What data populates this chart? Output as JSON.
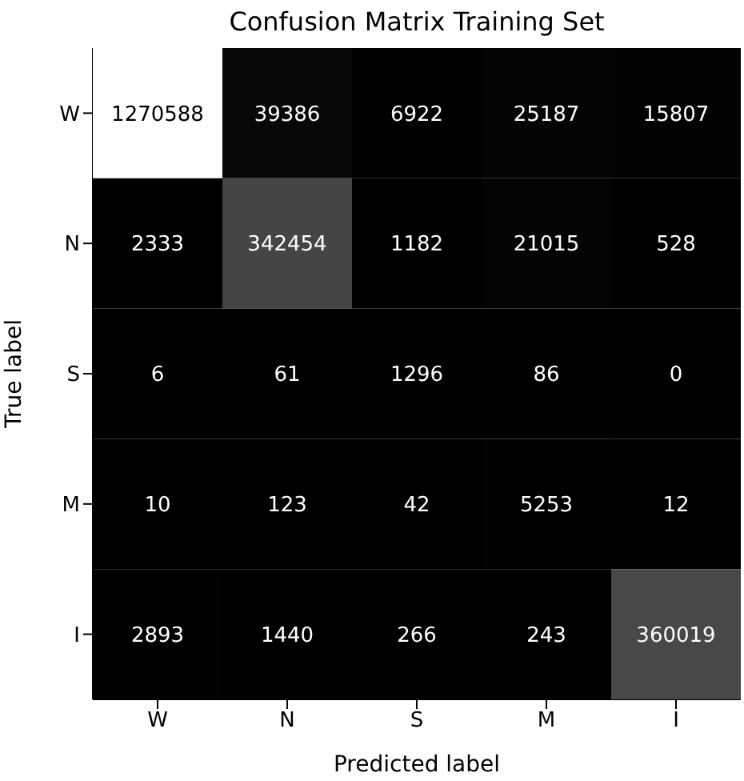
{
  "chart_data": {
    "type": "heatmap",
    "title": "Confusion Matrix Training Set",
    "xlabel": "Predicted label",
    "ylabel": "True label",
    "categories": [
      "W",
      "N",
      "S",
      "M",
      "I"
    ],
    "y_categories": [
      "W",
      "N",
      "S",
      "M",
      "I"
    ],
    "cells": [
      [
        1270588,
        39386,
        6922,
        25187,
        15807
      ],
      [
        2333,
        342454,
        1182,
        21015,
        528
      ],
      [
        6,
        61,
        1296,
        86,
        0
      ],
      [
        10,
        123,
        42,
        5253,
        12
      ],
      [
        2893,
        1440,
        266,
        243,
        360019
      ]
    ],
    "data_labels": true
  }
}
